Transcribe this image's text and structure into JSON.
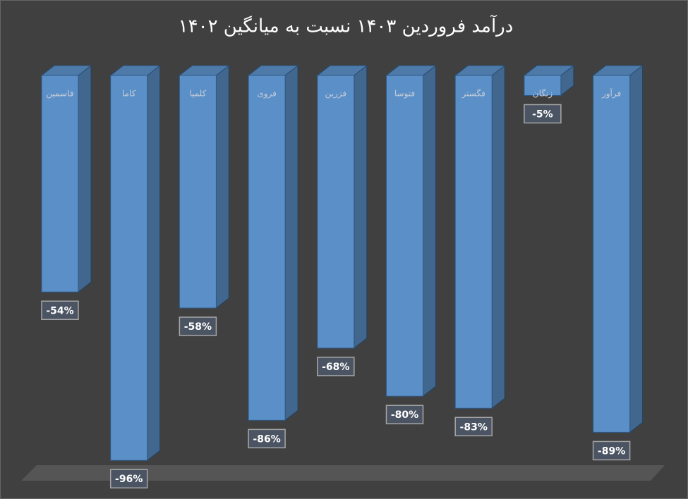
{
  "chart_data": {
    "type": "bar3d",
    "title": "درآمد فروردین ۱۴۰۳ نسبت به میانگین ۱۴۰۲",
    "categories": [
      "فاسمین",
      "کاما",
      "کلمیا",
      "فروی",
      "فزرین",
      "فتوسا",
      "فگستر",
      "زنگان",
      "فرآور"
    ],
    "values": [
      -54,
      -96,
      -58,
      -86,
      -68,
      -80,
      -83,
      -5,
      -89
    ],
    "value_labels": [
      "-54%",
      "-96%",
      "-58%",
      "-86%",
      "-68%",
      "-80%",
      "-83%",
      "-5%",
      "-89%"
    ],
    "color": "#5b8fc7",
    "ylim": [
      -100,
      0
    ]
  }
}
